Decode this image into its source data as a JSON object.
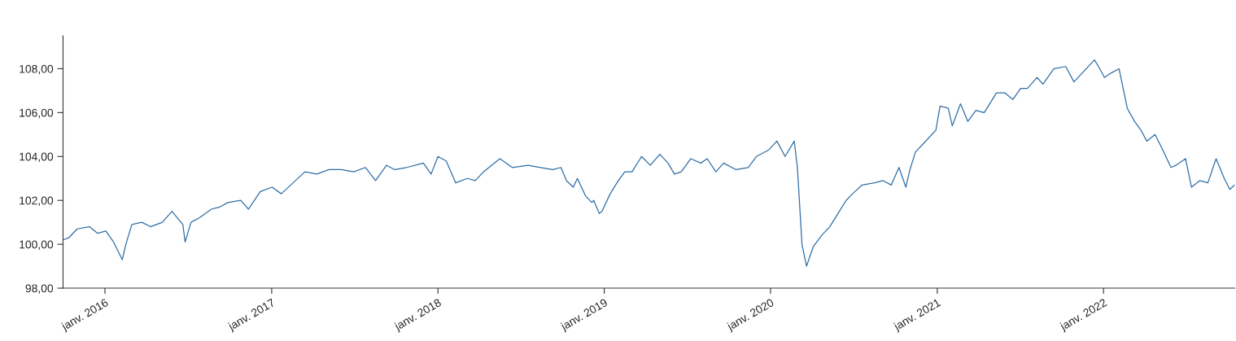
{
  "chart_data": {
    "type": "line",
    "x": [
      "2015-10-01",
      "2015-10-14",
      "2015-11-01",
      "2015-11-28",
      "2015-12-16",
      "2016-01-03",
      "2016-01-20",
      "2016-02-08",
      "2016-02-16",
      "2016-02-29",
      "2016-03-22",
      "2016-04-10",
      "2016-05-06",
      "2016-05-27",
      "2016-06-20",
      "2016-06-25",
      "2016-07-08",
      "2016-07-26",
      "2016-08-22",
      "2016-09-09",
      "2016-09-27",
      "2016-10-25",
      "2016-11-11",
      "2016-12-07",
      "2017-01-02",
      "2017-01-22",
      "2017-02-17",
      "2017-03-15",
      "2017-04-10",
      "2017-05-07",
      "2017-06-03",
      "2017-06-30",
      "2017-07-26",
      "2017-08-17",
      "2017-09-10",
      "2017-09-28",
      "2017-10-24",
      "2017-11-30",
      "2017-12-17",
      "2018-01-01",
      "2018-01-19",
      "2018-02-09",
      "2018-03-06",
      "2018-03-24",
      "2018-04-11",
      "2018-04-29",
      "2018-05-17",
      "2018-06-13",
      "2018-07-18",
      "2018-08-14",
      "2018-09-10",
      "2018-09-28",
      "2018-10-10",
      "2018-10-25",
      "2018-11-03",
      "2018-11-21",
      "2018-12-05",
      "2018-12-09",
      "2018-12-21",
      "2018-12-27",
      "2019-01-14",
      "2019-02-01",
      "2019-02-15",
      "2019-03-03",
      "2019-03-24",
      "2019-04-12",
      "2019-05-03",
      "2019-05-21",
      "2019-06-04",
      "2019-06-19",
      "2019-07-10",
      "2019-08-01",
      "2019-08-15",
      "2019-09-03",
      "2019-09-20",
      "2019-10-17",
      "2019-11-13",
      "2019-12-01",
      "2019-12-28",
      "2020-01-15",
      "2020-02-02",
      "2020-02-22",
      "2020-02-29",
      "2020-03-10",
      "2020-03-20",
      "2020-04-04",
      "2020-04-22",
      "2020-05-10",
      "2020-05-28",
      "2020-06-15",
      "2020-06-29",
      "2020-07-20",
      "2020-08-16",
      "2020-09-04",
      "2020-09-22",
      "2020-10-09",
      "2020-10-24",
      "2020-11-02",
      "2020-11-14",
      "2020-12-11",
      "2020-12-29",
      "2021-01-07",
      "2021-01-25",
      "2021-02-03",
      "2021-02-21",
      "2021-03-09",
      "2021-03-27",
      "2021-04-14",
      "2021-05-11",
      "2021-05-29",
      "2021-06-16",
      "2021-07-03",
      "2021-07-18",
      "2021-08-08",
      "2021-08-21",
      "2021-09-14",
      "2021-10-10",
      "2021-10-28",
      "2021-11-15",
      "2021-12-12",
      "2021-12-21",
      "2022-01-03",
      "2022-01-17",
      "2022-02-04",
      "2022-02-22",
      "2022-03-10",
      "2022-03-24",
      "2022-04-06",
      "2022-04-24",
      "2022-05-11",
      "2022-05-29",
      "2022-06-09",
      "2022-06-30",
      "2022-07-13",
      "2022-07-31",
      "2022-08-18",
      "2022-09-05",
      "2022-09-23",
      "2022-10-05",
      "2022-10-16"
    ],
    "series": [
      {
        "color": "#2f6ea5",
        "values": [
          100.2,
          100.3,
          100.7,
          100.8,
          100.5,
          100.6,
          100.1,
          99.3,
          100.0,
          100.9,
          101.0,
          100.8,
          101.0,
          101.5,
          100.9,
          100.1,
          101.0,
          101.2,
          101.6,
          101.7,
          101.9,
          102.0,
          101.6,
          102.4,
          102.6,
          102.3,
          102.8,
          103.3,
          103.2,
          103.4,
          103.4,
          103.3,
          103.5,
          102.9,
          103.6,
          103.4,
          103.5,
          103.7,
          103.2,
          104.0,
          103.8,
          102.8,
          103.0,
          102.9,
          103.3,
          103.6,
          103.9,
          103.5,
          103.6,
          103.5,
          103.4,
          103.5,
          102.9,
          102.6,
          103.0,
          102.2,
          101.9,
          102.0,
          101.4,
          101.5,
          102.3,
          102.9,
          103.3,
          103.3,
          104.0,
          103.6,
          104.1,
          103.7,
          103.2,
          103.3,
          103.9,
          103.7,
          103.9,
          103.3,
          103.7,
          103.4,
          103.5,
          104.0,
          104.3,
          104.7,
          104.0,
          104.7,
          103.5,
          100.0,
          99.0,
          99.9,
          100.4,
          100.8,
          101.4,
          102.0,
          102.3,
          102.7,
          102.8,
          102.9,
          102.7,
          103.5,
          102.6,
          103.4,
          104.2,
          104.8,
          105.2,
          106.3,
          106.2,
          105.4,
          106.4,
          105.6,
          106.1,
          106.0,
          106.9,
          106.9,
          106.6,
          107.1,
          107.1,
          107.6,
          107.3,
          108.0,
          108.1,
          107.4,
          107.8,
          108.4,
          108.1,
          107.6,
          107.8,
          108.0,
          106.2,
          105.6,
          105.2,
          104.7,
          105.0,
          104.3,
          103.5,
          103.6,
          103.9,
          102.6,
          102.9,
          102.8,
          103.9,
          103.0,
          102.5,
          102.7
        ]
      }
    ],
    "xlim": [
      "2015-10-01",
      "2022-10-16"
    ],
    "xticks": [
      {
        "value": "2016-01-01",
        "label": "janv. 2016"
      },
      {
        "value": "2017-01-01",
        "label": "janv. 2017"
      },
      {
        "value": "2018-01-01",
        "label": "janv. 2018"
      },
      {
        "value": "2019-01-01",
        "label": "janv. 2019"
      },
      {
        "value": "2020-01-01",
        "label": "janv. 2020"
      },
      {
        "value": "2021-01-01",
        "label": "janv. 2021"
      },
      {
        "value": "2022-01-01",
        "label": "janv. 2022"
      }
    ],
    "ylim": [
      98,
      109.5
    ],
    "yticks": [
      {
        "value": 98,
        "label": "98,00"
      },
      {
        "value": 100,
        "label": "100,00"
      },
      {
        "value": 102,
        "label": "102,00"
      },
      {
        "value": 104,
        "label": "104,00"
      },
      {
        "value": 106,
        "label": "106,00"
      },
      {
        "value": 108,
        "label": "108,00"
      }
    ],
    "grid": false,
    "line_style": "solid"
  }
}
